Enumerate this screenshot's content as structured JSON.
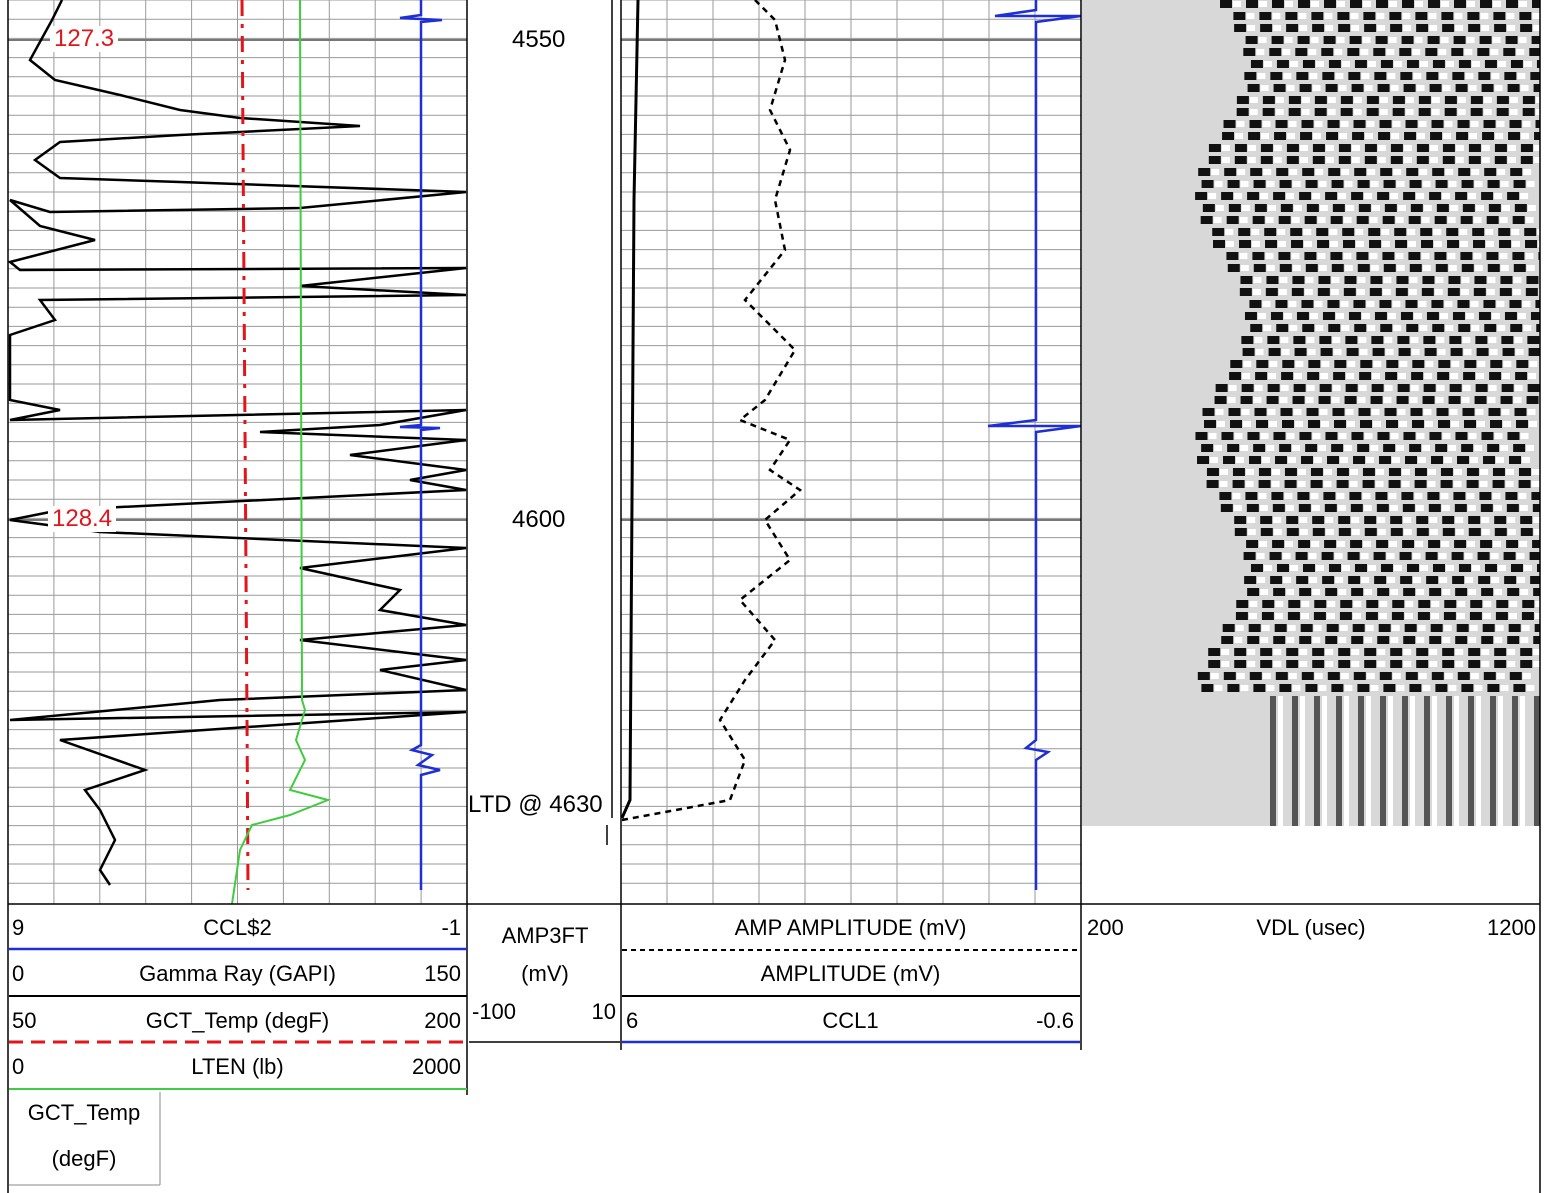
{
  "colors": {
    "grid": "#9a9a9a",
    "black": "#000000",
    "blue": "#1f2fd6",
    "red": "#e0161b",
    "green": "#3fcc3f",
    "vdl_bg": "#d8d8d8"
  },
  "track1": {
    "depth_labels": [
      "127.3",
      "128.4"
    ],
    "headers": {
      "ccl2": {
        "left": "9",
        "name": "CCL$2",
        "right": "-1"
      },
      "gamma": {
        "left": "0",
        "name": "Gamma Ray (GAPI)",
        "right": "150"
      },
      "gct_temp": {
        "left": "50",
        "name": "GCT_Temp (degF)",
        "right": "200"
      },
      "lten": {
        "left": "0",
        "name": "LTEN (lb)",
        "right": "2000"
      },
      "gct_temp_box": {
        "line1": "GCT_Temp",
        "line2": "(degF)"
      }
    }
  },
  "depth_track": {
    "depths": [
      "4550",
      "4600"
    ],
    "ltd_label": "LTD @ 4630",
    "header": {
      "line1": "AMP3FT",
      "line2": "(mV)",
      "left": "-100",
      "right": "10"
    }
  },
  "track2": {
    "headers": {
      "amp_amplitude": {
        "name": "AMP AMPLITUDE (mV)"
      },
      "amplitude": {
        "name": "AMPLITUDE (mV)"
      },
      "ccl1": {
        "left": "6",
        "name": "CCL1",
        "right": "-0.6"
      }
    }
  },
  "vdl_track": {
    "header": {
      "left": "200",
      "name": "VDL (usec)",
      "right": "1200"
    }
  },
  "chart_data": {
    "type": "line",
    "depth_axis": {
      "labels": [
        4550,
        4600
      ],
      "ltd": 4630
    },
    "series": [
      {
        "name": "Gamma Ray (GAPI)",
        "range": [
          0,
          150
        ],
        "color": "black"
      },
      {
        "name": "CCL$2",
        "range": [
          9,
          -1
        ],
        "color": "blue"
      },
      {
        "name": "GCT_Temp (degF)",
        "range": [
          50,
          200
        ],
        "color": "red",
        "style": "dashed"
      },
      {
        "name": "LTEN (lb)",
        "range": [
          0,
          2000
        ],
        "color": "green"
      },
      {
        "name": "AMP AMPLITUDE (mV)",
        "color": "black",
        "style": "dashed"
      },
      {
        "name": "AMPLITUDE (mV)",
        "color": "black"
      },
      {
        "name": "CCL1",
        "range": [
          6,
          -0.6
        ],
        "color": "blue"
      },
      {
        "name": "VDL (usec)",
        "range": [
          200,
          1200
        ],
        "type": "heatmap"
      }
    ],
    "grid": true
  }
}
